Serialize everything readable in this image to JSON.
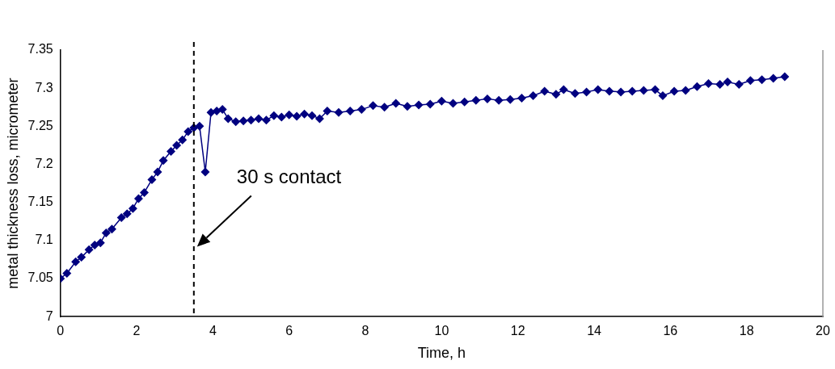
{
  "chart_data": {
    "type": "line",
    "xlabel": "Time, h",
    "ylabel": "metal thickness loss, micrometer",
    "xlim": [
      0,
      20
    ],
    "xticks": [
      0,
      2,
      4,
      6,
      8,
      10,
      12,
      14,
      16,
      18,
      20
    ],
    "ylim": [
      7,
      7.35
    ],
    "yticks": [
      7,
      7.05,
      7.1,
      7.15,
      7.2,
      7.25,
      7.3,
      7.35
    ],
    "grid": false,
    "legend": false,
    "marker": "diamond",
    "line_style": "solid",
    "ref_lines": [
      {
        "axis": "x",
        "value": 3.5,
        "label": "30 s contact",
        "line_style": "dashed",
        "color": "#000000"
      }
    ],
    "series": [
      {
        "color": "#000080",
        "x": [
          0,
          0.17,
          0.4,
          0.55,
          0.75,
          0.9,
          1.05,
          1.2,
          1.35,
          1.6,
          1.75,
          1.9,
          2.05,
          2.2,
          2.4,
          2.55,
          2.7,
          2.9,
          3.05,
          3.2,
          3.35,
          3.5,
          3.65,
          3.8,
          3.95,
          4.1,
          4.25,
          4.4,
          4.6,
          4.8,
          5.0,
          5.2,
          5.4,
          5.6,
          5.8,
          6.0,
          6.2,
          6.4,
          6.6,
          6.8,
          7.0,
          7.3,
          7.6,
          7.9,
          8.2,
          8.5,
          8.8,
          9.1,
          9.4,
          9.7,
          10.0,
          10.3,
          10.6,
          10.9,
          11.2,
          11.5,
          11.8,
          12.1,
          12.4,
          12.7,
          13.0,
          13.2,
          13.5,
          13.8,
          14.1,
          14.4,
          14.7,
          15.0,
          15.3,
          15.6,
          15.8,
          16.1,
          16.4,
          16.7,
          17.0,
          17.3,
          17.5,
          17.8,
          18.1,
          18.4,
          18.7,
          19.0
        ],
        "values": [
          7.05,
          7.057,
          7.072,
          7.078,
          7.088,
          7.094,
          7.097,
          7.11,
          7.115,
          7.13,
          7.135,
          7.142,
          7.155,
          7.163,
          7.18,
          7.19,
          7.205,
          7.217,
          7.225,
          7.232,
          7.243,
          7.248,
          7.25,
          7.19,
          7.268,
          7.27,
          7.272,
          7.26,
          7.256,
          7.257,
          7.258,
          7.26,
          7.258,
          7.264,
          7.262,
          7.265,
          7.263,
          7.266,
          7.264,
          7.26,
          7.27,
          7.268,
          7.27,
          7.272,
          7.277,
          7.275,
          7.28,
          7.276,
          7.278,
          7.279,
          7.283,
          7.28,
          7.282,
          7.284,
          7.286,
          7.284,
          7.285,
          7.287,
          7.29,
          7.296,
          7.292,
          7.298,
          7.293,
          7.295,
          7.298,
          7.296,
          7.295,
          7.296,
          7.297,
          7.298,
          7.29,
          7.296,
          7.297,
          7.302,
          7.306,
          7.305,
          7.308,
          7.305,
          7.31,
          7.311,
          7.313,
          7.315
        ]
      }
    ]
  }
}
